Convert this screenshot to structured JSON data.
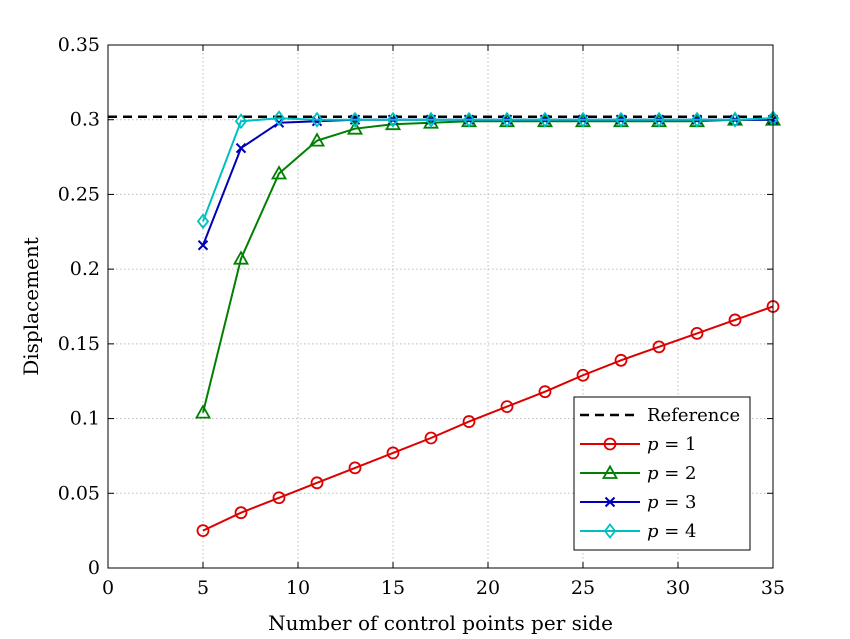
{
  "chart_data": {
    "type": "line",
    "title": "",
    "xlabel": "Number of control points per side",
    "ylabel": "Displacement",
    "xlim": [
      0,
      35
    ],
    "ylim": [
      0,
      0.35
    ],
    "xticks": [
      0,
      5,
      10,
      15,
      20,
      25,
      30,
      35
    ],
    "yticks": [
      0,
      0.05,
      0.1,
      0.15,
      0.2,
      0.25,
      0.3,
      0.35
    ],
    "xtick_labels": [
      "0",
      "5",
      "10",
      "15",
      "20",
      "25",
      "30",
      "35"
    ],
    "ytick_labels": [
      "0",
      "0.05",
      "0.1",
      "0.15",
      "0.2",
      "0.25",
      "0.3",
      "0.35"
    ],
    "grid": true,
    "legend_position": "bottom-right",
    "x": [
      5,
      7,
      9,
      11,
      13,
      15,
      17,
      19,
      21,
      23,
      25,
      27,
      29,
      31,
      33,
      35
    ],
    "reference": {
      "name": "Reference",
      "value": 0.302,
      "color": "#000000",
      "style": "dashed"
    },
    "series": [
      {
        "name": "p = 1",
        "var": "p",
        "eq": " = 1",
        "color": "#dd0000",
        "marker": "circle",
        "values": [
          0.025,
          0.037,
          0.047,
          0.057,
          0.067,
          0.077,
          0.087,
          0.098,
          0.108,
          0.118,
          0.129,
          0.139,
          0.148,
          0.157,
          0.166,
          0.175
        ]
      },
      {
        "name": "p = 2",
        "var": "p",
        "eq": " = 2",
        "color": "#008000",
        "marker": "triangle",
        "values": [
          0.104,
          0.207,
          0.264,
          0.286,
          0.294,
          0.297,
          0.298,
          0.299,
          0.299,
          0.299,
          0.299,
          0.299,
          0.299,
          0.299,
          0.3,
          0.3
        ]
      },
      {
        "name": "p = 3",
        "var": "p",
        "eq": " = 3",
        "color": "#0000bb",
        "marker": "x",
        "values": [
          0.216,
          0.281,
          0.298,
          0.299,
          0.3,
          0.3,
          0.3,
          0.3,
          0.3,
          0.3,
          0.3,
          0.3,
          0.3,
          0.3,
          0.3,
          0.3
        ]
      },
      {
        "name": "p = 4",
        "var": "p",
        "eq": " = 4",
        "color": "#00bfbf",
        "marker": "diamond",
        "values": [
          0.232,
          0.299,
          0.301,
          0.3,
          0.3,
          0.3,
          0.3,
          0.3,
          0.3,
          0.3,
          0.3,
          0.3,
          0.3,
          0.3,
          0.3,
          0.301
        ]
      }
    ]
  }
}
